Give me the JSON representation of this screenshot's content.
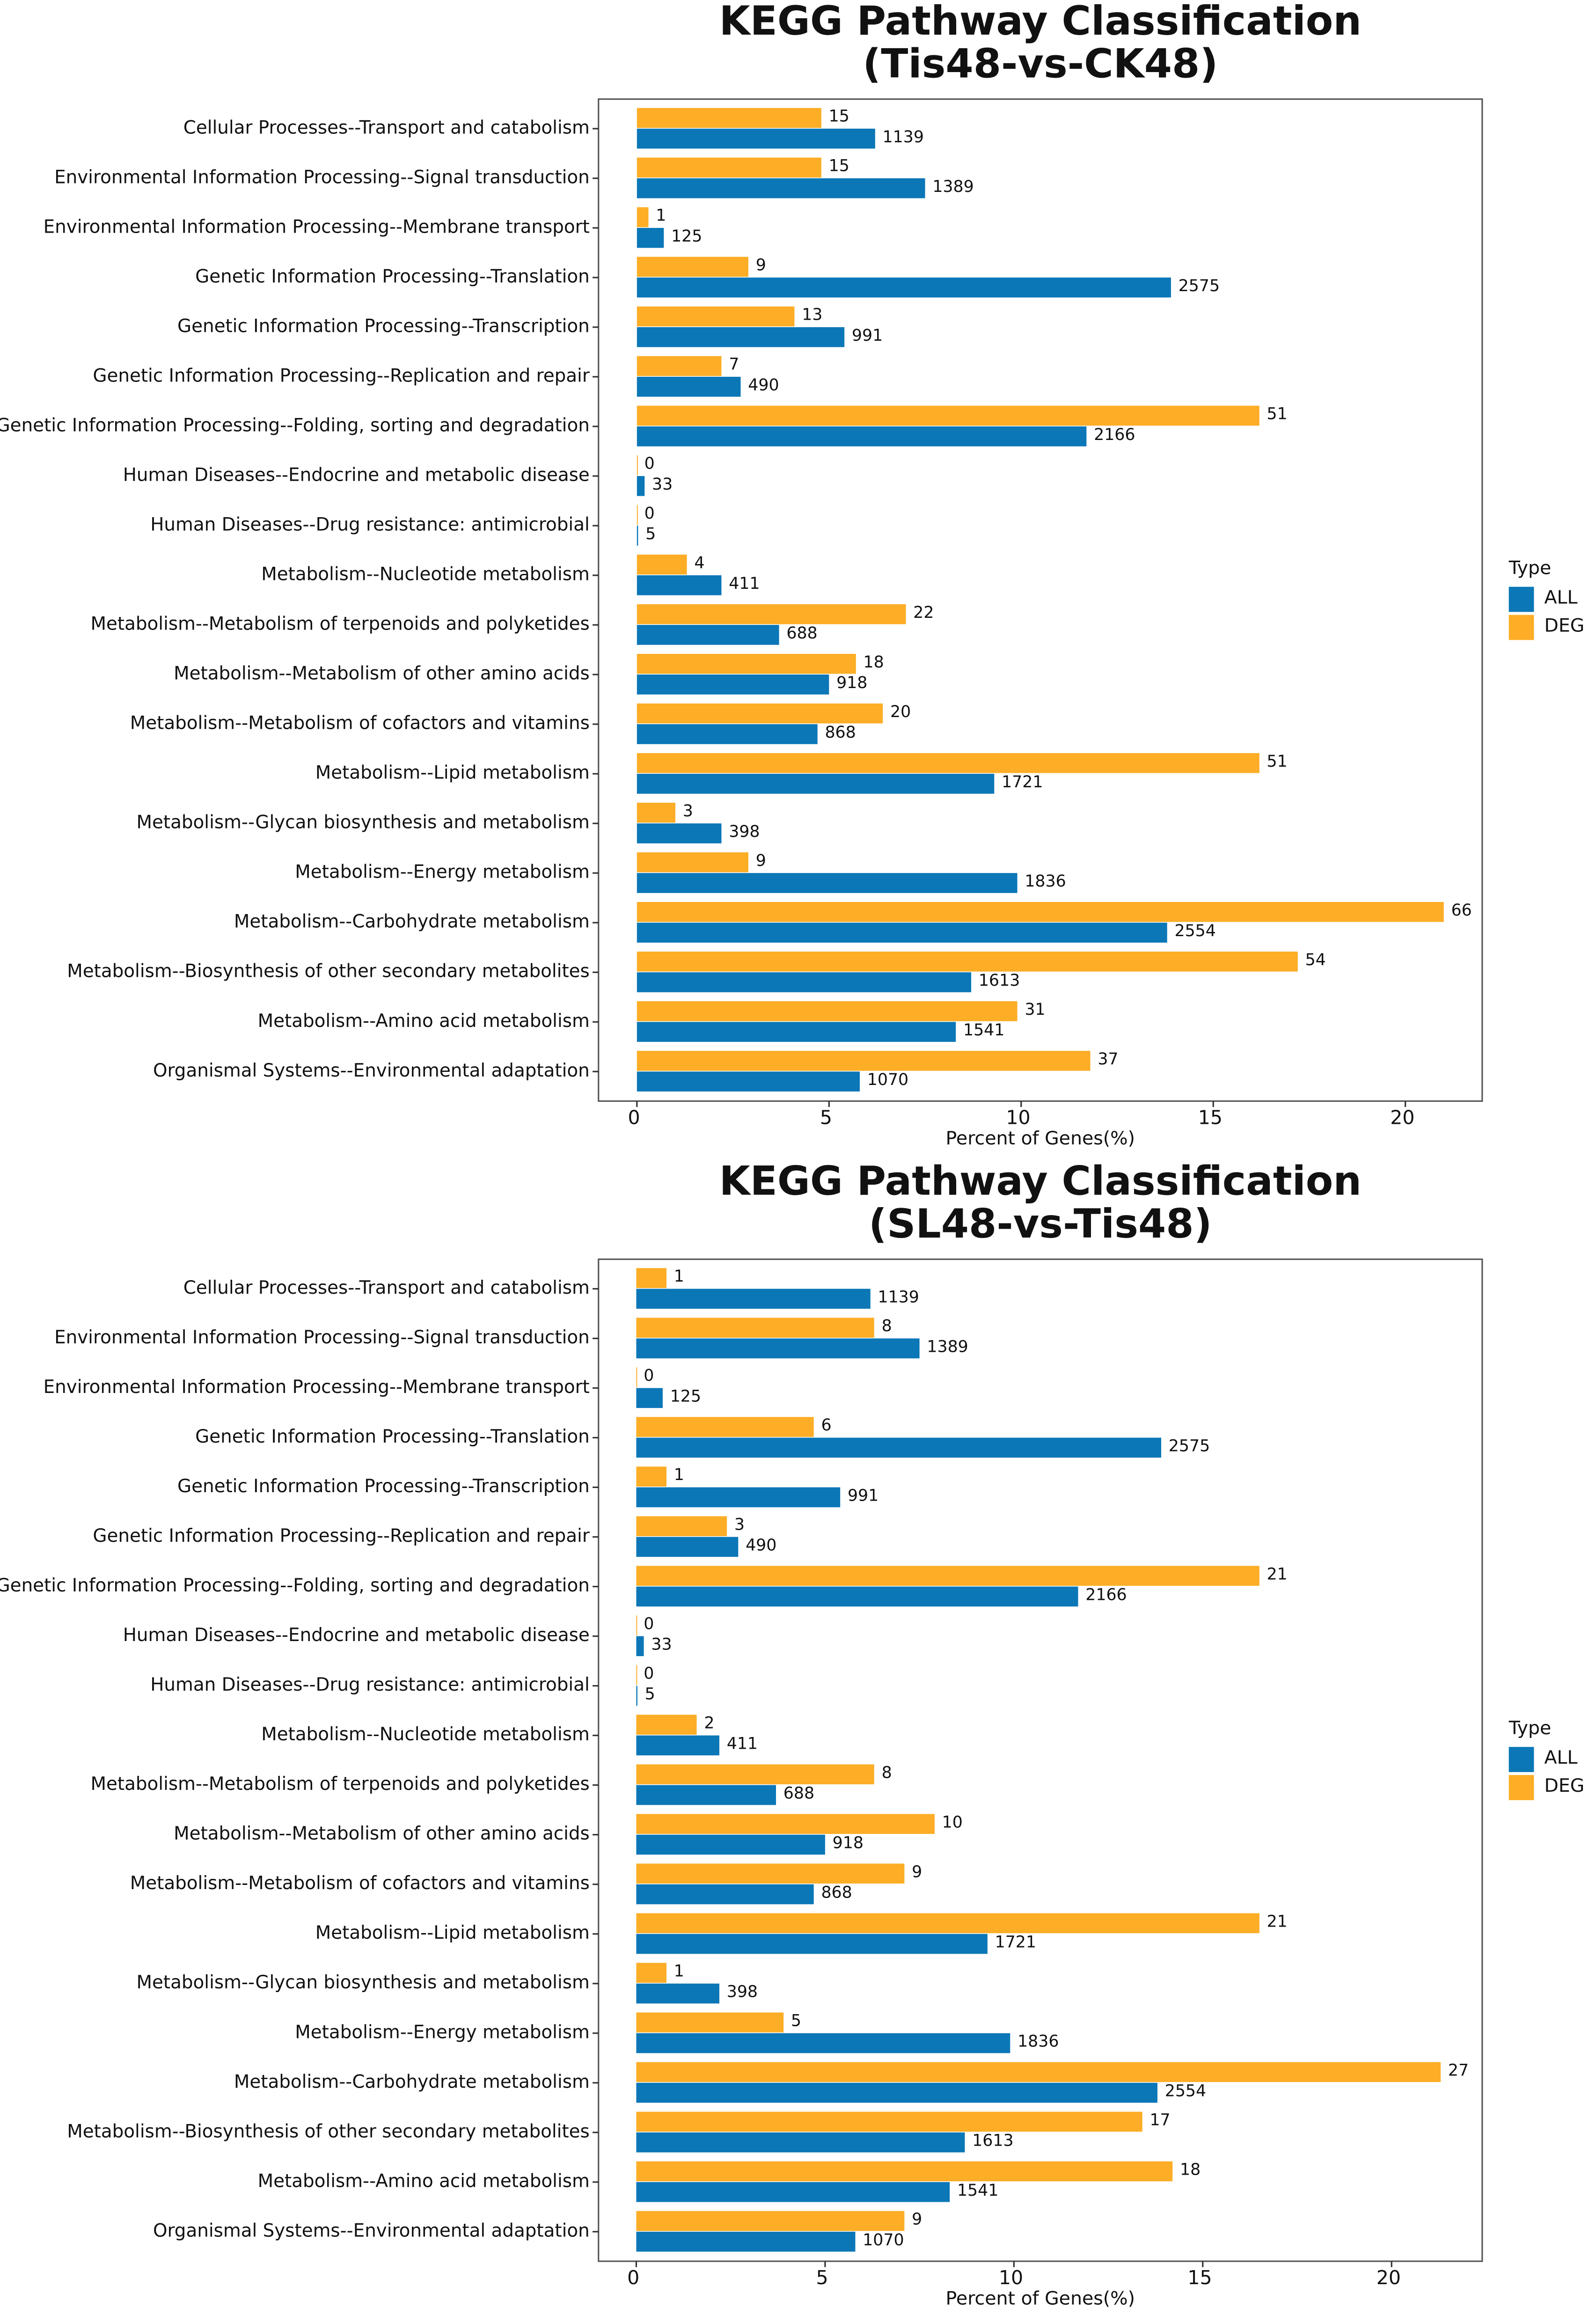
{
  "chart_data": [
    {
      "type": "barh",
      "title": "KEGG Pathway Classification",
      "subtitle": "(Tis48-vs-CK48)",
      "x_label": "Percent of Genes(%)",
      "legend_title": "Type",
      "legend": "right",
      "categories": [
        "Cellular Processes--Transport and catabolism",
        "Environmental Information Processing--Signal transduction",
        "Environmental Information Processing--Membrane transport",
        "Genetic Information Processing--Translation",
        "Genetic Information Processing--Transcription",
        "Genetic Information Processing--Replication and repair",
        "Genetic Information Processing--Folding, sorting and degradation",
        "Human Diseases--Endocrine and metabolic disease",
        "Human Diseases--Drug resistance: antimicrobial",
        "Metabolism--Nucleotide metabolism",
        "Metabolism--Metabolism of terpenoids and polyketides",
        "Metabolism--Metabolism of other amino acids",
        "Metabolism--Metabolism of cofactors and vitamins",
        "Metabolism--Lipid metabolism",
        "Metabolism--Glycan biosynthesis and metabolism",
        "Metabolism--Energy metabolism",
        "Metabolism--Carbohydrate metabolism",
        "Metabolism--Biosynthesis of other secondary metabolites",
        "Metabolism--Amino acid metabolism",
        "Organismal Systems--Environmental adaptation"
      ],
      "series": [
        {
          "name": "ALL",
          "color": "#0b77b7",
          "values": [
            6.2,
            7.5,
            0.7,
            13.9,
            5.4,
            2.7,
            11.7,
            0.2,
            0.03,
            2.2,
            3.7,
            5.0,
            4.7,
            9.3,
            2.2,
            9.9,
            13.8,
            8.7,
            8.3,
            5.8
          ],
          "gene_counts": [
            1139,
            1389,
            125,
            2575,
            991,
            490,
            2166,
            33,
            5,
            411,
            688,
            918,
            868,
            1721,
            398,
            1836,
            2554,
            1613,
            1541,
            1070
          ]
        },
        {
          "name": "DEG",
          "color": "#fdad26",
          "values": [
            4.8,
            4.8,
            0.3,
            2.9,
            4.1,
            2.2,
            16.2,
            0,
            0,
            1.3,
            7.0,
            5.7,
            6.4,
            16.2,
            1.0,
            2.9,
            21.0,
            17.2,
            9.9,
            11.8
          ],
          "gene_counts": [
            15,
            15,
            1,
            9,
            13,
            7,
            51,
            0,
            0,
            4,
            22,
            18,
            20,
            51,
            3,
            9,
            66,
            54,
            31,
            37
          ]
        }
      ],
      "xlim": [
        -1.0,
        22.0
      ],
      "xticks": [
        0,
        5,
        10,
        15,
        20
      ]
    },
    {
      "type": "barh",
      "title": "KEGG Pathway Classification",
      "subtitle": "(SL48-vs-Tis48)",
      "x_label": "Percent of Genes(%)",
      "legend_title": "Type",
      "legend": "right",
      "categories": [
        "Cellular Processes--Transport and catabolism",
        "Environmental Information Processing--Signal transduction",
        "Environmental Information Processing--Membrane transport",
        "Genetic Information Processing--Translation",
        "Genetic Information Processing--Transcription",
        "Genetic Information Processing--Replication and repair",
        "Genetic Information Processing--Folding, sorting and degradation",
        "Human Diseases--Endocrine and metabolic disease",
        "Human Diseases--Drug resistance: antimicrobial",
        "Metabolism--Nucleotide metabolism",
        "Metabolism--Metabolism of terpenoids and polyketides",
        "Metabolism--Metabolism of other amino acids",
        "Metabolism--Metabolism of cofactors and vitamins",
        "Metabolism--Lipid metabolism",
        "Metabolism--Glycan biosynthesis and metabolism",
        "Metabolism--Energy metabolism",
        "Metabolism--Carbohydrate metabolism",
        "Metabolism--Biosynthesis of other secondary metabolites",
        "Metabolism--Amino acid metabolism",
        "Organismal Systems--Environmental adaptation"
      ],
      "series": [
        {
          "name": "ALL",
          "color": "#0b77b7",
          "values": [
            6.2,
            7.5,
            0.7,
            13.9,
            5.4,
            2.7,
            11.7,
            0.2,
            0.03,
            2.2,
            3.7,
            5.0,
            4.7,
            9.3,
            2.2,
            9.9,
            13.8,
            8.7,
            8.3,
            5.8
          ],
          "gene_counts": [
            1139,
            1389,
            125,
            2575,
            991,
            490,
            2166,
            33,
            5,
            411,
            688,
            918,
            868,
            1721,
            398,
            1836,
            2554,
            1613,
            1541,
            1070
          ]
        },
        {
          "name": "DEG",
          "color": "#fdad26",
          "values": [
            0.8,
            6.3,
            0,
            4.7,
            0.8,
            2.4,
            16.5,
            0,
            0,
            1.6,
            6.3,
            7.9,
            7.1,
            16.5,
            0.8,
            3.9,
            21.3,
            13.4,
            14.2,
            7.1
          ],
          "gene_counts": [
            1,
            8,
            0,
            6,
            1,
            3,
            21,
            0,
            0,
            2,
            8,
            10,
            9,
            21,
            1,
            5,
            27,
            17,
            18,
            9
          ]
        }
      ],
      "xlim": [
        -1.0,
        22.4
      ],
      "xticks": [
        0,
        5,
        10,
        15,
        20
      ]
    }
  ]
}
